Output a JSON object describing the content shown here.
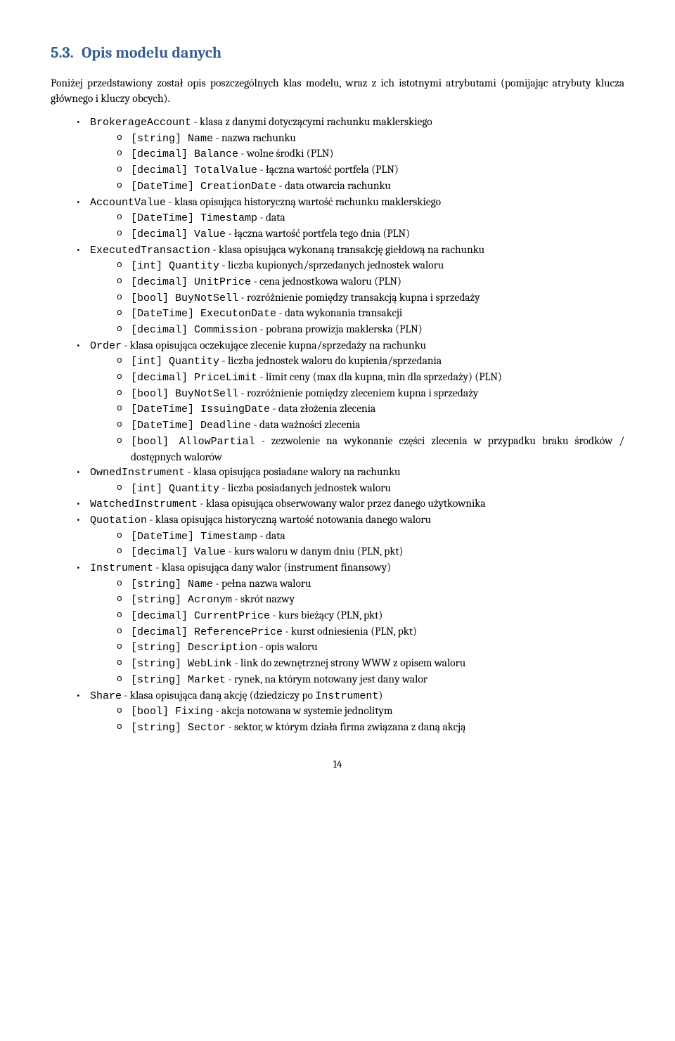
{
  "heading": {
    "num": "5.3.",
    "title": "Opis modelu danych"
  },
  "intro": "Poniżej przedstawiony został opis poszczególnych klas modelu, wraz z ich istotnymi atrybutami (pomijając atrybuty klucza głównego i kluczy obcych).",
  "items": [
    {
      "labelCode": "BrokerageAccount",
      "labelRest": " - klasa z danymi dotyczącymi rachunku maklerskiego",
      "sub": [
        {
          "code": "[string] Name",
          "rest": " - nazwa rachunku"
        },
        {
          "code": "[decimal] Balance",
          "rest": " - wolne środki (PLN)"
        },
        {
          "code": "[decimal] TotalValue",
          "rest": " - łączna wartość portfela (PLN)"
        },
        {
          "code": "[DateTime] CreationDate",
          "rest": " - data otwarcia rachunku"
        }
      ]
    },
    {
      "labelCode": "AccountValue",
      "labelRest": " - klasa opisująca historyczną wartość rachunku maklerskiego",
      "sub": [
        {
          "code": "[DateTime] Timestamp",
          "rest": " - data"
        },
        {
          "code": "[decimal] Value",
          "rest": " - łączna wartość portfela tego dnia (PLN)"
        }
      ]
    },
    {
      "labelCode": "ExecutedTransaction",
      "labelRest": " - klasa opisująca wykonaną transakcję giełdową na rachunku",
      "sub": [
        {
          "code": "[int] Quantity",
          "rest": " - liczba kupionych/sprzedanych jednostek waloru"
        },
        {
          "code": "[decimal] UnitPrice",
          "rest": " - cena jednostkowa waloru (PLN)"
        },
        {
          "code": "[bool] BuyNotSell",
          "rest": " - rozróżnienie pomiędzy transakcją kupna i sprzedaży"
        },
        {
          "code": "[DateTime] ExecutonDate",
          "rest": " - data wykonania transakcji"
        },
        {
          "code": "[decimal] Commission",
          "rest": " - pobrana prowizja maklerska (PLN)"
        }
      ]
    },
    {
      "labelCode": "Order",
      "labelRest": " - klasa opisująca oczekujące zlecenie kupna/sprzedaży na rachunku",
      "sub": [
        {
          "code": "[int] Quantity",
          "rest": " - liczba jednostek waloru do kupienia/sprzedania"
        },
        {
          "code": "[decimal] PriceLimit",
          "rest": " - limit ceny (max dla kupna, min dla sprzedaży) (PLN)"
        },
        {
          "code": "[bool] BuyNotSell",
          "rest": " - rozróżnienie pomiędzy zleceniem kupna i sprzedaży"
        },
        {
          "code": "[DateTime] IssuingDate",
          "rest": " - data złożenia zlecenia"
        },
        {
          "code": "[DateTime] Deadline",
          "rest": " - data ważności zlecenia"
        },
        {
          "code": "[bool] AllowPartial",
          "rest": " - zezwolenie na wykonanie części zlecenia w przypadku braku środków / dostępnych walorów"
        }
      ]
    },
    {
      "labelCode": "OwnedInstrument",
      "labelRest": " - klasa opisująca posiadane walory na rachunku",
      "sub": [
        {
          "code": "[int] Quantity",
          "rest": " - liczba posiadanych jednostek waloru"
        }
      ]
    },
    {
      "labelCode": "WatchedInstrument",
      "labelRest": " - klasa opisująca obserwowany walor przez danego użytkownika",
      "sub": []
    },
    {
      "labelCode": "Quotation",
      "labelRest": " - klasa opisująca historyczną wartość notowania danego waloru",
      "sub": [
        {
          "code": "[DateTime] Timestamp",
          "rest": " - data"
        },
        {
          "code": "[decimal] Value",
          "rest": " - kurs waloru w danym dniu (PLN, pkt)"
        }
      ]
    },
    {
      "labelCode": "Instrument",
      "labelRest": " - klasa opisująca dany walor (instrument finansowy)",
      "sub": [
        {
          "code": "[string] Name",
          "rest": " - pełna nazwa waloru"
        },
        {
          "code": "[string] Acronym",
          "rest": " - skrót nazwy"
        },
        {
          "code": "[decimal] CurrentPrice",
          "rest": " - kurs bieżący (PLN, pkt)"
        },
        {
          "code": "[decimal] ReferencePrice",
          "rest": " - kurst odniesienia (PLN, pkt)"
        },
        {
          "code": "[string] Description",
          "rest": " - opis waloru"
        },
        {
          "code": "[string] WebLink",
          "rest": " - link do zewnętrznej strony WWW z opisem waloru"
        },
        {
          "code": "[string] Market",
          "rest": " - rynek, na którym notowany jest dany walor"
        }
      ]
    },
    {
      "labelCode": "Share",
      "labelRest": " - klasa opisująca daną akcję (dziedziczy po ",
      "tailCode": "Instrument",
      "tailRest": ")",
      "sub": [
        {
          "code": "[bool] Fixing",
          "rest": " - akcja notowana w systemie jednolitym"
        },
        {
          "code": "[string] Sector",
          "rest": " - sektor, w którym działa firma związana z daną akcją"
        }
      ]
    }
  ],
  "pageNumber": "14"
}
